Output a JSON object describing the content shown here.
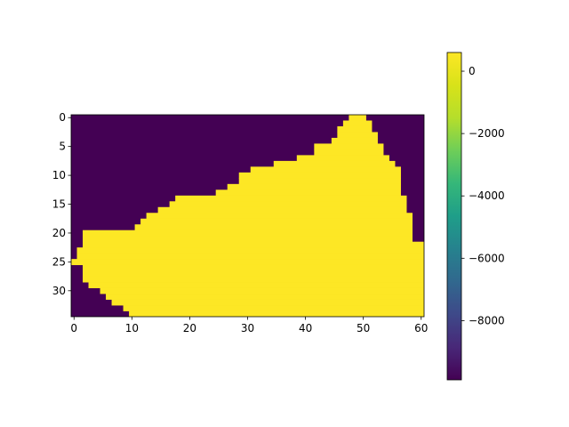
{
  "chart_data": {
    "type": "heatmap",
    "title": "",
    "xlabel": "",
    "ylabel": "",
    "grid": false,
    "image": {
      "columns": 61,
      "rows": 35,
      "background_value": -9900,
      "foreground_value": 600,
      "mask_rows_start_end": [
        [
          48,
          50
        ],
        [
          47,
          51
        ],
        [
          46,
          51
        ],
        [
          46,
          52
        ],
        [
          45,
          52
        ],
        [
          42,
          53
        ],
        [
          42,
          53
        ],
        [
          39,
          54
        ],
        [
          35,
          55
        ],
        [
          31,
          56
        ],
        [
          29,
          56
        ],
        [
          29,
          56
        ],
        [
          27,
          56
        ],
        [
          25,
          56
        ],
        [
          18,
          57
        ],
        [
          17,
          57
        ],
        [
          15,
          57
        ],
        [
          13,
          58
        ],
        [
          12,
          58
        ],
        [
          11,
          58
        ],
        [
          2,
          58
        ],
        [
          2,
          58
        ],
        [
          2,
          60
        ],
        [
          1,
          60
        ],
        [
          1,
          60
        ],
        [
          0,
          60
        ],
        [
          2,
          60
        ],
        [
          2,
          60
        ],
        [
          2,
          60
        ],
        [
          3,
          60
        ],
        [
          5,
          60
        ],
        [
          6,
          60
        ],
        [
          7,
          60
        ],
        [
          9,
          60
        ],
        [
          10,
          60
        ]
      ]
    },
    "x_ticks": [
      0,
      10,
      20,
      30,
      40,
      50,
      60
    ],
    "y_ticks": [
      0,
      5,
      10,
      15,
      20,
      25,
      30
    ],
    "xlim": [
      -0.5,
      60.5
    ],
    "ylim": [
      34.5,
      -0.5
    ],
    "colorbar": {
      "colormap": "viridis",
      "range": [
        -9900,
        600
      ],
      "ticks": [
        0,
        -2000,
        -4000,
        -6000,
        -8000
      ],
      "tick_labels": [
        "0",
        "−2000",
        "−4000",
        "−6000",
        "−8000"
      ]
    }
  },
  "colors": {
    "low": "#440154",
    "high": "#fde725"
  }
}
